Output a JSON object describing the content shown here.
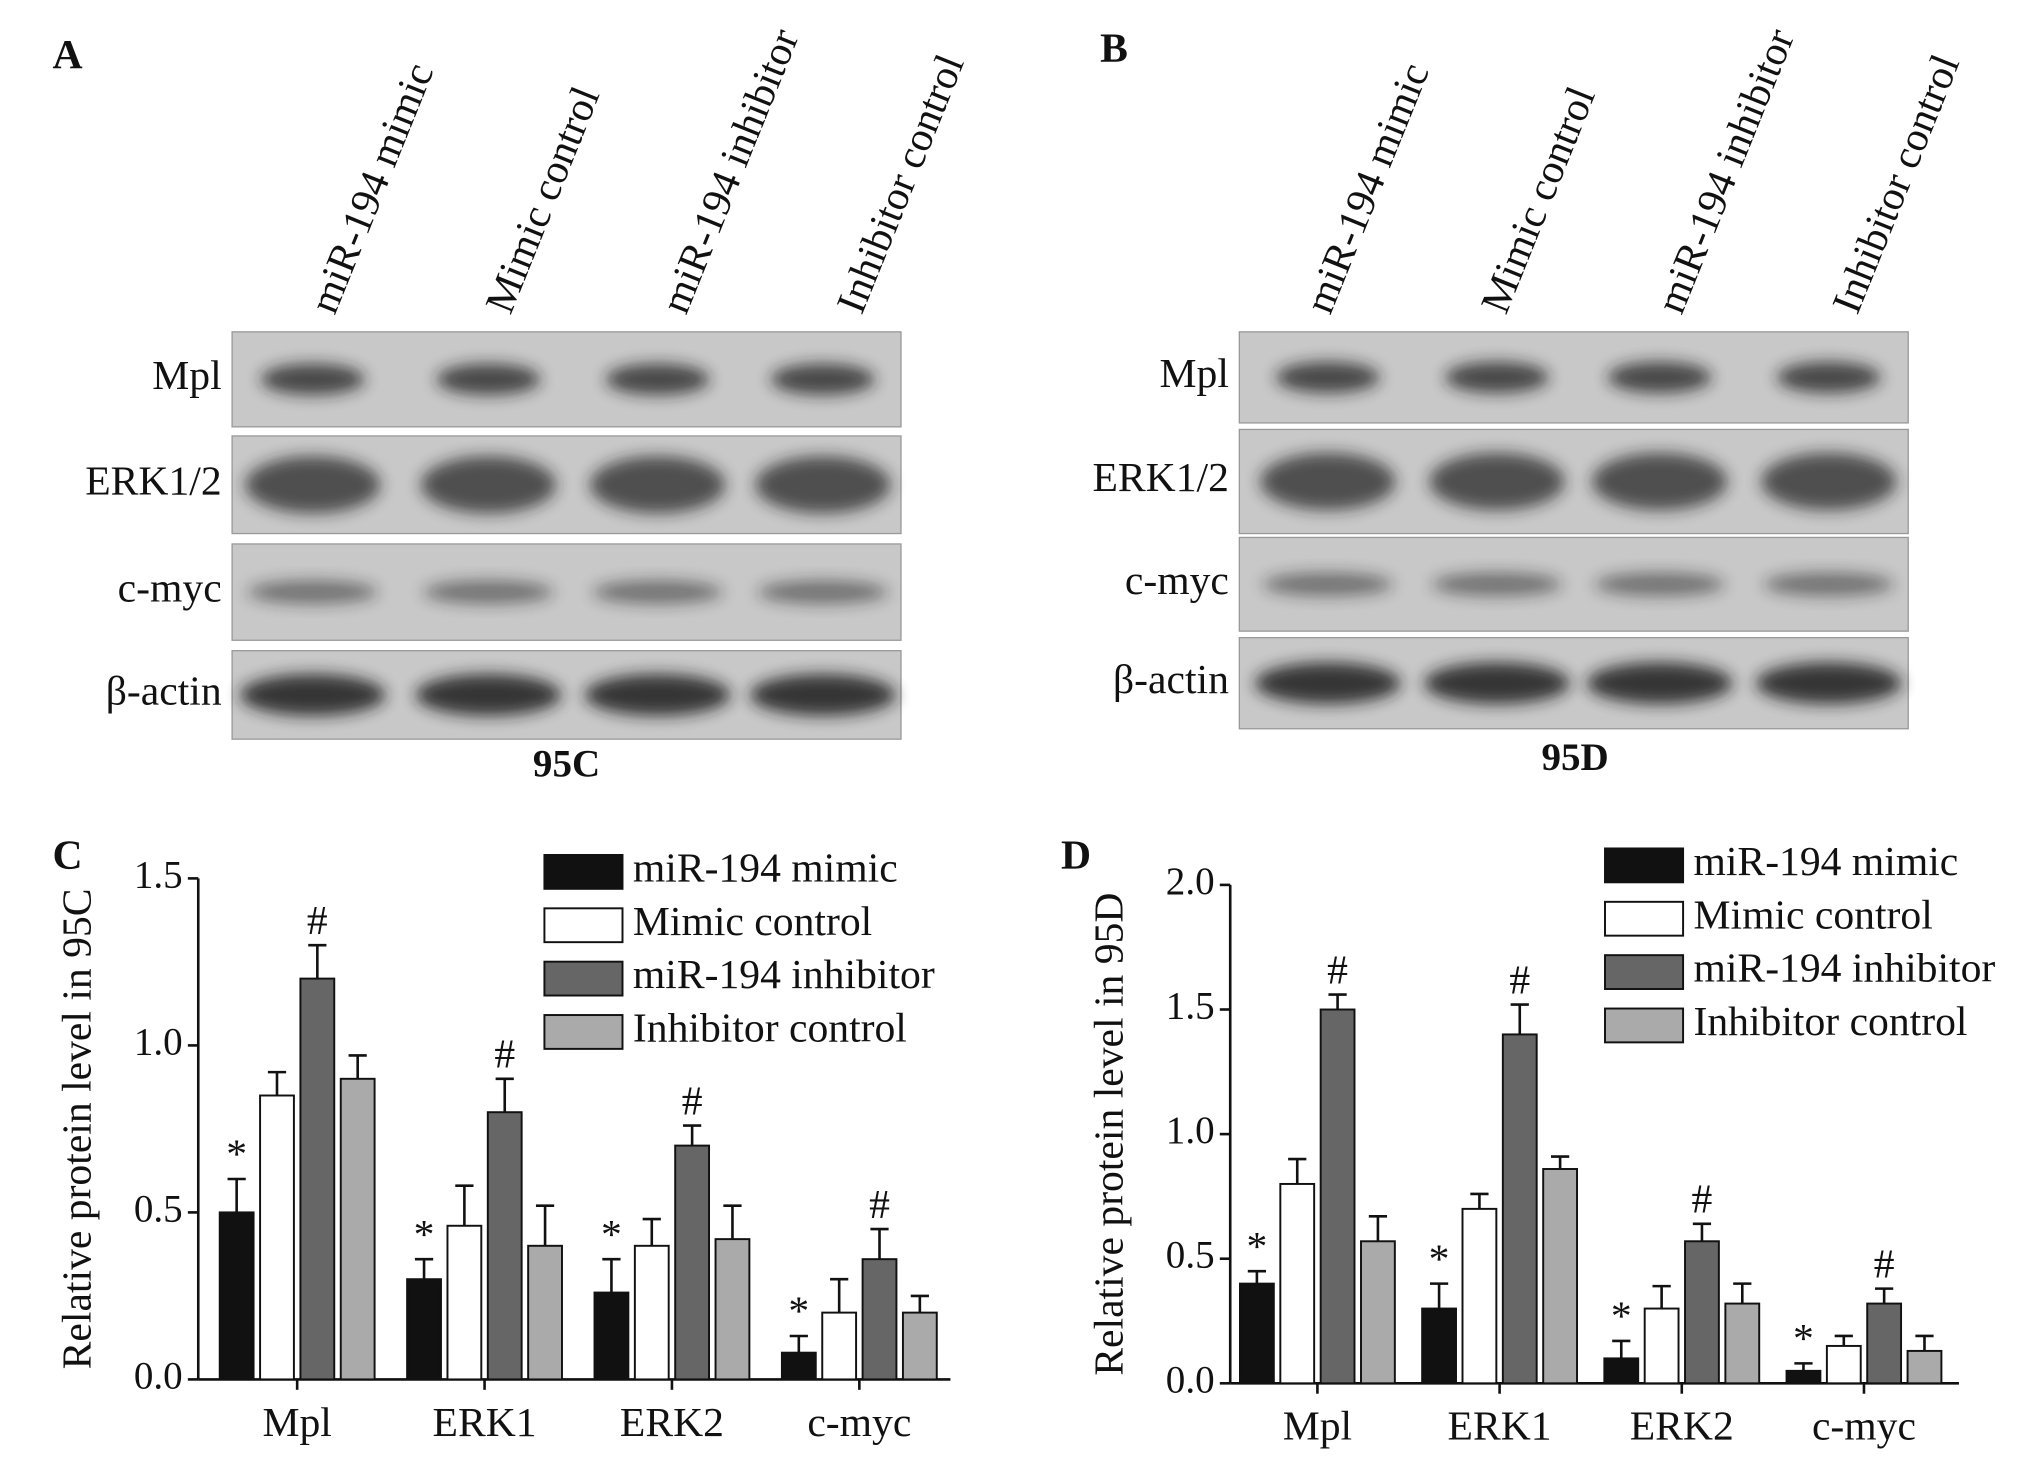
{
  "panels": [
    {
      "letter": "A",
      "lanes": [
        "miR-194 mimic",
        "Mimic control",
        "miR-194 inhibitor",
        "Inhibitor control"
      ],
      "rows": [
        "Mpl",
        "ERK1/2",
        "c-myc",
        "β-actin"
      ],
      "cell_line": "95C"
    },
    {
      "letter": "B",
      "lanes": [
        "miR-194 mimic",
        "Mimic control",
        "miR-194 inhibitor",
        "Inhibitor control"
      ],
      "rows": [
        "Mpl",
        "ERK1/2",
        "c-myc",
        "β-actin"
      ],
      "cell_line": "95D"
    }
  ],
  "chart_data": [
    {
      "type": "bar",
      "panel_label": "C",
      "ylabel": "Relative protein level in 95C",
      "categories": [
        "Mpl",
        "ERK1",
        "ERK2",
        "c-myc"
      ],
      "series": [
        {
          "name": "miR-194 mimic",
          "color": "#111111",
          "values": [
            0.5,
            0.3,
            0.26,
            0.08
          ],
          "errors": [
            0.1,
            0.06,
            0.1,
            0.05
          ],
          "significance": [
            "*",
            "*",
            "*",
            "*"
          ]
        },
        {
          "name": "Mimic control",
          "color": "#ffffff",
          "values": [
            0.85,
            0.46,
            0.4,
            0.2
          ],
          "errors": [
            0.07,
            0.12,
            0.08,
            0.1
          ]
        },
        {
          "name": "miR-194 inhibitor",
          "color": "#666666",
          "values": [
            1.2,
            0.8,
            0.7,
            0.36
          ],
          "errors": [
            0.1,
            0.1,
            0.06,
            0.09
          ],
          "significance": [
            "#",
            "#",
            "#",
            "#"
          ]
        },
        {
          "name": "Inhibitor control",
          "color": "#aaaaaa",
          "values": [
            0.9,
            0.4,
            0.42,
            0.2
          ],
          "errors": [
            0.07,
            0.12,
            0.1,
            0.05
          ]
        }
      ],
      "ylim": [
        0,
        1.5
      ],
      "yticks": [
        {
          "value": 0,
          "label": "0.0"
        },
        0.5,
        {
          "value": 1,
          "label": "1.0"
        },
        1.5
      ],
      "legend": "top-right"
    },
    {
      "type": "bar",
      "panel_label": "D",
      "ylabel": "Relative protein level in 95D",
      "categories": [
        "Mpl",
        "ERK1",
        "ERK2",
        "c-myc"
      ],
      "series": [
        {
          "name": "miR-194 mimic",
          "color": "#111111",
          "values": [
            0.4,
            0.3,
            0.1,
            0.05
          ],
          "errors": [
            0.05,
            0.1,
            0.07,
            0.03
          ],
          "significance": [
            "*",
            "*",
            "*",
            "*"
          ]
        },
        {
          "name": "Mimic control",
          "color": "#ffffff",
          "values": [
            0.8,
            0.7,
            0.3,
            0.15
          ],
          "errors": [
            0.1,
            0.06,
            0.09,
            0.04
          ]
        },
        {
          "name": "miR-194 inhibitor",
          "color": "#666666",
          "values": [
            1.5,
            1.4,
            0.57,
            0.32
          ],
          "errors": [
            0.06,
            0.12,
            0.07,
            0.06
          ],
          "significance": [
            "#",
            "#",
            "#",
            "#"
          ]
        },
        {
          "name": "Inhibitor control",
          "color": "#aaaaaa",
          "values": [
            0.57,
            0.86,
            0.32,
            0.13
          ],
          "errors": [
            0.1,
            0.05,
            0.08,
            0.06
          ]
        }
      ],
      "ylim": [
        0,
        2
      ],
      "yticks": [
        {
          "value": 0,
          "label": "0.0"
        },
        0.5,
        {
          "value": 1,
          "label": "1.0"
        },
        1.5,
        {
          "value": 2,
          "label": "2.0"
        }
      ],
      "legend": "top-right"
    }
  ]
}
